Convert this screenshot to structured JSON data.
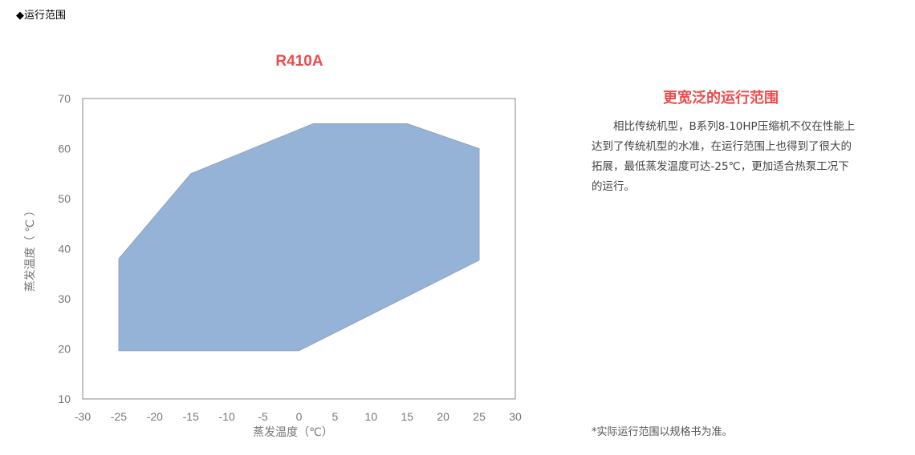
{
  "section_title": "◆运行范围",
  "chart_data": {
    "type": "area",
    "title": "R410A",
    "xlabel": "蒸发温度（℃）",
    "ylabel": "蒸发温度（ ℃ ）",
    "xlim": [
      -30,
      30
    ],
    "ylim": [
      10,
      70
    ],
    "xticks": [
      -30,
      -25,
      -20,
      -15,
      -10,
      -5,
      0,
      5,
      10,
      15,
      20,
      25,
      30
    ],
    "yticks": [
      10,
      20,
      30,
      40,
      50,
      60,
      70
    ],
    "grid": false,
    "polygon": [
      [
        -25,
        19.6
      ],
      [
        -25,
        38
      ],
      [
        -15,
        55
      ],
      [
        2,
        65
      ],
      [
        15,
        65
      ],
      [
        25,
        60
      ],
      [
        25,
        37.7
      ],
      [
        0,
        19.6
      ]
    ],
    "fill_color": "#95b3d7"
  },
  "description": {
    "title": "更宽泛的运行范围",
    "text": "相比传统机型，B系列8-10HP压缩机不仅在性能上达到了传统机型的水准，在运行范围上也得到了很大的拓展，最低蒸发温度可达-25℃，更加适合热泵工况下的运行。",
    "note": "*实际运行范围以规格书为准。"
  }
}
